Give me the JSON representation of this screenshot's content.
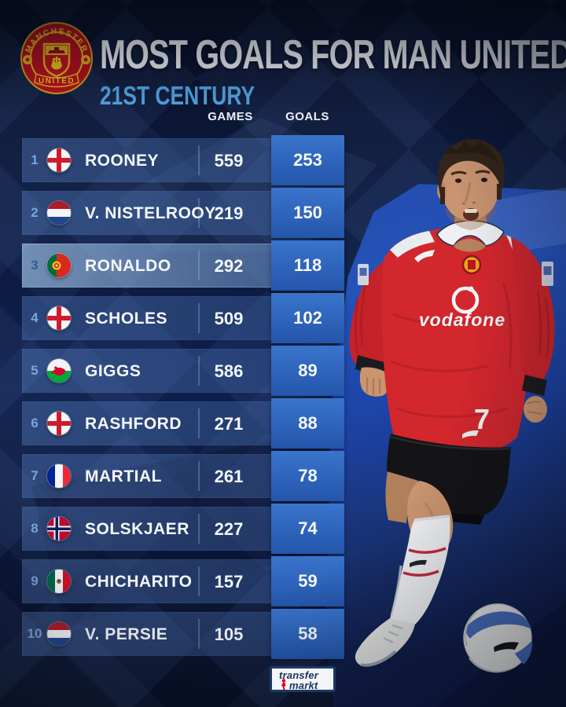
{
  "header": {
    "title": "MOST GOALS FOR MAN UNITED",
    "subtitle": "21ST CENTURY"
  },
  "crest": {
    "top_text": "MANCHESTER",
    "bottom_text": "UNITED"
  },
  "table": {
    "columns": {
      "games": "GAMES",
      "goals": "GOALS"
    },
    "rows": [
      {
        "rank": "1",
        "flag": "england",
        "name": "ROONEY",
        "games": "559",
        "goals": "253",
        "highlight": false
      },
      {
        "rank": "2",
        "flag": "netherlands",
        "name": "V. NISTELROOY",
        "games": "219",
        "goals": "150",
        "highlight": false
      },
      {
        "rank": "3",
        "flag": "portugal",
        "name": "RONALDO",
        "games": "292",
        "goals": "118",
        "highlight": true
      },
      {
        "rank": "4",
        "flag": "england",
        "name": "SCHOLES",
        "games": "509",
        "goals": "102",
        "highlight": false
      },
      {
        "rank": "5",
        "flag": "wales",
        "name": "GIGGS",
        "games": "586",
        "goals": "89",
        "highlight": false
      },
      {
        "rank": "6",
        "flag": "england",
        "name": "RASHFORD",
        "games": "271",
        "goals": "88",
        "highlight": false
      },
      {
        "rank": "7",
        "flag": "france",
        "name": "MARTIAL",
        "games": "261",
        "goals": "78",
        "highlight": false
      },
      {
        "rank": "8",
        "flag": "norway",
        "name": "SOLSKJAER",
        "games": "227",
        "goals": "74",
        "highlight": false
      },
      {
        "rank": "9",
        "flag": "mexico",
        "name": "CHICHARITO",
        "games": "157",
        "goals": "59",
        "highlight": false
      },
      {
        "rank": "10",
        "flag": "netherlands",
        "name": "V. PERSIE",
        "games": "105",
        "goals": "58",
        "highlight": false
      }
    ]
  },
  "photo": {
    "subject": "cristiano-ronaldo",
    "shirt_sponsor": "vodafone",
    "shorts_number": "7"
  },
  "footer": {
    "brand_line1": "transfer",
    "brand_line2": "markt"
  },
  "colors": {
    "background_navy": "#0d1a3e",
    "photo_blue": "#1d43a6",
    "goals_box_blue": "#2a61b8",
    "highlight_row": "#8cb6e6",
    "subtitle_blue": "#54a6e6",
    "shirt_red": "#d2272d",
    "rank_blue": "#7ba6d8"
  }
}
